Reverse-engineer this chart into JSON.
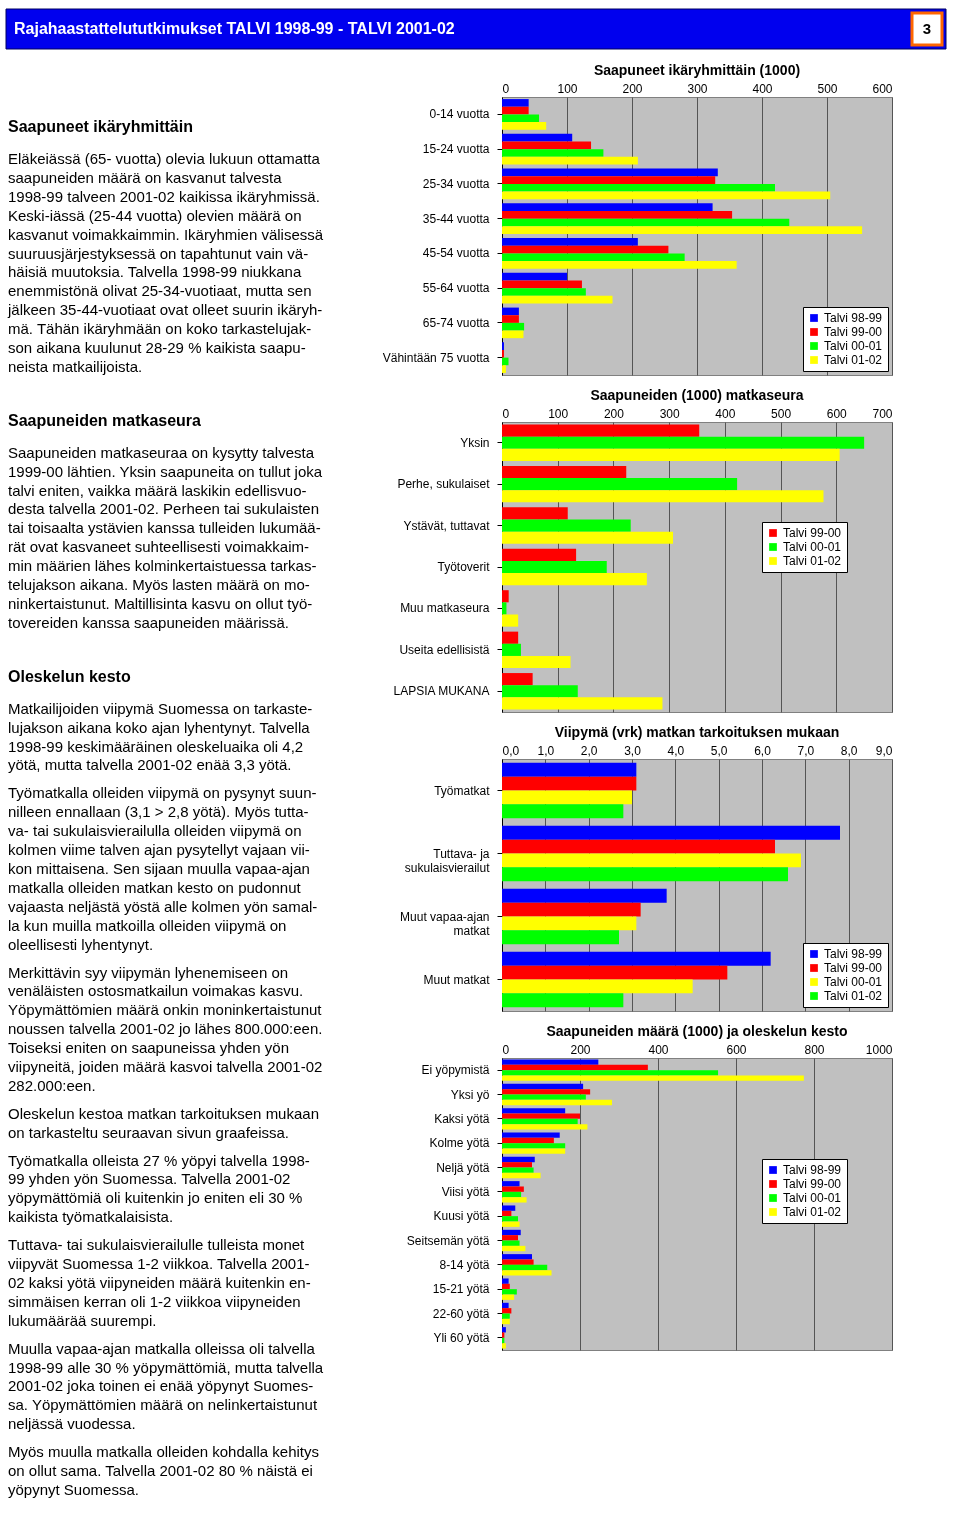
{
  "chart_data": [
    {
      "type": "other",
      "title": "Rajahaastattelututkimukset  TALVI 1998-99 - TALVI 2001-02",
      "annotations": [
        "3",
        "Saapuneet ikäryhmittäin",
        "Eläkeiässä (65- vuotta) olevia lukuun ottamatta\nsaapuneiden määrä on kasvanut talvesta\n1998-99 talveen 2001-02 kaikissa ikäryhmissä.\nKeski-iässä (25-44 vuotta) olevien määrä on\nkasvanut voimakkaimmin. Ikäryhmien välisessä\nsuuruusjärjestyksessä on tapahtunut vain vä-\nhäisiä muutoksia. Talvella 1998-99 niukkana\nenemmistönä olivat 25-34-vuotiaat, mutta sen\njälkeen 35-44-vuotiaat ovat olleet suurin ikäryh-\nmä. Tähän ikäryhmään on koko tarkastelujak-\nson aikana kuulunut 28-29 % kaikista saapu-\nneista matkailijoista.",
        "Saapuneiden matkaseura",
        "Saapuneiden matkaseuraa on kysytty talvesta\n1999-00 lähtien. Yksin saapuneita on tullut joka\ntalvi eniten, vaikka määrä laskikin edellisvuo-\ndesta talvella 2001-02. Perheen tai sukulaisten\ntai toisaalta ystävien kanssa tulleiden lukumää-\nrät ovat kasvaneet suhteellisesti voimakkaim-\nmin määrien lähes kolminkertaistuessa tarkas-\ntelujakson aikana. Myös lasten määrä on mo-\nninkertaistunut. Maltillisinta kasvu on ollut työ-\ntovereiden kanssa saapuneiden määrissä.",
        "Oleskelun kesto",
        "Matkailijoiden viipymä Suomessa on tarkaste-\nlujakson aikana koko ajan lyhentynyt. Talvella\n1998-99 keskimääräinen oleskeluaika oli 4,2\nyötä, mutta talvella 2001-02 enää 3,3 yötä.",
        "Työmatkalla olleiden viipymä on pysynyt suun-\nnilleen ennallaan (3,1 > 2,8 yötä). Myös tutta-\nva- tai sukulaisvierailulla olleiden viipymä on\nkolmen viime talven ajan pysytellyt vajaan vii-\nkon mittaisena. Sen sijaan muulla vapaa-ajan\nmatkalla olleiden matkan kesto on pudonnut\nvajaasta neljästä yöstä alle kolmen yön samal-\nla kun muilla matkoilla olleiden viipymä on\noleellisesti lyhentynyt.",
        "Merkittävin syy viipymän lyhenemiseen on\nvenäläisten ostosmatkailun voimakas kasvu.\nYöpymättömien määrä onkin moninkertaistunut\nnoussen talvella 2001-02 jo lähes 800.000:een.\nToiseksi eniten on saapuneissa yhden yön\nviipyneitä, joiden määrä kasvoi talvella 2001-02\n282.000:een.",
        "Oleskelun kestoa matkan tarkoituksen mukaan\non tarkasteltu seuraavan sivun graafeissa.",
        "Työmatkalla olleista 27 % yöpyi talvella 1998-\n99 yhden yön Suomessa. Talvella 2001-02\nyöpymättömiä oli kuitenkin jo eniten eli 30 %\nkaikista työmatkalaisista.",
        "Tuttava- tai sukulaisvierailulle tulleista monet\nviipyvät Suomessa 1-2 viikkoa. Talvella 2001-\n02 kaksi yötä viipyneiden määrä kuitenkin en-\nsimmäisen kerran oli 1-2 viikkoa viipyneiden\nlukumäärää suurempi.",
        "Muulla vapaa-ajan matkalla olleissa oli talvella\n1998-99 alle 30 % yöpymättömiä, mutta talvella\n2001-02 joka toinen ei enää yöpynyt Suomes-\nsa. Yöpymättömien määrä on nelinkertaistunut\nneljässä vuodessa.",
        "Myös muulla matkalla olleiden kohdalla kehitys\non ollut sama. Talvella 2001-02 80 % näistä ei\nyöpynyt Suomessa."
      ]
    },
    {
      "type": "bar",
      "orientation": "horizontal",
      "title": "Saapuneet ikäryhmittäin (1000)",
      "categories": [
        "0-14 vuotta",
        "15-24 vuotta",
        "25-34 vuotta",
        "35-44 vuotta",
        "45-54 vuotta",
        "55-64 vuotta",
        "65-74 vuotta",
        "Vähintään 75 vuotta"
      ],
      "series": [
        {
          "name": "Talvi 98-99",
          "color": "#0000ff",
          "values": [
            41,
            108,
            332,
            324,
            209,
            100,
            26,
            3
          ]
        },
        {
          "name": "Talvi 99-00",
          "color": "#ff0000",
          "values": [
            41,
            137,
            328,
            354,
            256,
            123,
            26,
            3
          ]
        },
        {
          "name": "Talvi 00-01",
          "color": "#00ff00",
          "values": [
            57,
            156,
            420,
            442,
            281,
            129,
            34,
            10
          ]
        },
        {
          "name": "Talvi 01-02",
          "color": "#ffff00",
          "values": [
            68,
            209,
            505,
            554,
            361,
            170,
            33,
            6
          ]
        }
      ],
      "xlim": [
        0,
        600
      ],
      "xticks": [
        0,
        100,
        200,
        300,
        400,
        500,
        600
      ],
      "grid": "x",
      "legend": "bottom right"
    },
    {
      "type": "bar",
      "orientation": "horizontal",
      "title": "Saapuneiden (1000) matkaseura",
      "categories": [
        "Yksin",
        "Perhe, sukulaiset",
        "Ystävät, tuttavat",
        "Työtoverit",
        "Muu matkaseura",
        "Useita edellisistä",
        "LAPSIA MUKANA"
      ],
      "series": [
        {
          "name": "Talvi 99-00",
          "color": "#ff0000",
          "values": [
            354,
            223,
            118,
            133,
            12,
            29,
            55
          ]
        },
        {
          "name": "Talvi 00-01",
          "color": "#00ff00",
          "values": [
            650,
            422,
            231,
            188,
            8,
            34,
            136
          ]
        },
        {
          "name": "Talvi 01-02",
          "color": "#ffff00",
          "values": [
            606,
            577,
            307,
            260,
            29,
            123,
            288
          ]
        }
      ],
      "xlim": [
        0,
        700
      ],
      "xticks": [
        0,
        100,
        200,
        300,
        400,
        500,
        600,
        700
      ],
      "grid": "x",
      "legend": "right"
    },
    {
      "type": "bar",
      "orientation": "horizontal",
      "title": "Viipymä (vrk) matkan tarkoituksen mukaan",
      "categories": [
        "Työmatkat",
        "Tuttava- ja\nsukulaisvierailut",
        "Muut vapaa-ajan\nmatkat",
        "Muut matkat"
      ],
      "series": [
        {
          "name": "Talvi 98-99",
          "color": "#0000ff",
          "values": [
            3.1,
            7.8,
            3.8,
            6.2
          ]
        },
        {
          "name": "Talvi 99-00",
          "color": "#ff0000",
          "values": [
            3.1,
            6.3,
            3.2,
            5.2
          ]
        },
        {
          "name": "Talvi 00-01",
          "color": "#ffff00",
          "values": [
            3.0,
            6.9,
            3.1,
            4.4
          ]
        },
        {
          "name": "Talvi 01-02",
          "color": "#00ff00",
          "values": [
            2.8,
            6.6,
            2.7,
            2.8
          ]
        }
      ],
      "xlim": [
        0,
        9
      ],
      "xticks": [
        {
          "value": 0,
          "label": "0,0"
        },
        {
          "value": 1,
          "label": "1,0"
        },
        {
          "value": 2,
          "label": "2,0"
        },
        {
          "value": 3,
          "label": "3,0"
        },
        {
          "value": 4,
          "label": "4,0"
        },
        {
          "value": 5,
          "label": "5,0"
        },
        {
          "value": 6,
          "label": "6,0"
        },
        {
          "value": 7,
          "label": "7,0"
        },
        {
          "value": 8,
          "label": "8,0"
        },
        {
          "value": 9,
          "label": "9,0"
        }
      ],
      "grid": "x",
      "legend": "bottom right"
    },
    {
      "type": "bar",
      "orientation": "horizontal",
      "title": "Saapuneiden määrä (1000) ja oleskelun kesto",
      "categories": [
        "Ei yöpymistä",
        "Yksi yö",
        "Kaksi yötä",
        "Kolme yötä",
        "Neljä yötä",
        "Viisi yötä",
        "Kuusi yötä",
        "Seitsemän yötä",
        "8-14 yötä",
        "15-21 yötä",
        "22-60 yötä",
        "Yli 60 yötä"
      ],
      "series": [
        {
          "name": "Talvi 98-99",
          "color": "#0000ff",
          "values": [
            247,
            208,
            162,
            148,
            84,
            45,
            34,
            48,
            77,
            17,
            17,
            10
          ]
        },
        {
          "name": "Talvi 99-00",
          "color": "#ff0000",
          "values": [
            374,
            226,
            200,
            133,
            77,
            56,
            24,
            41,
            81,
            20,
            24,
            6
          ]
        },
        {
          "name": "Talvi 00-01",
          "color": "#00ff00",
          "values": [
            554,
            215,
            194,
            162,
            81,
            49,
            41,
            45,
            116,
            38,
            20,
            6
          ]
        },
        {
          "name": "Talvi 01-02",
          "color": "#ffff00",
          "values": [
            774,
            282,
            219,
            162,
            99,
            63,
            45,
            60,
            127,
            31,
            20,
            10
          ]
        }
      ],
      "xlim": [
        0,
        1000
      ],
      "xticks": [
        0,
        200,
        400,
        600,
        800,
        1000
      ],
      "grid": "x",
      "legend": "right"
    }
  ]
}
